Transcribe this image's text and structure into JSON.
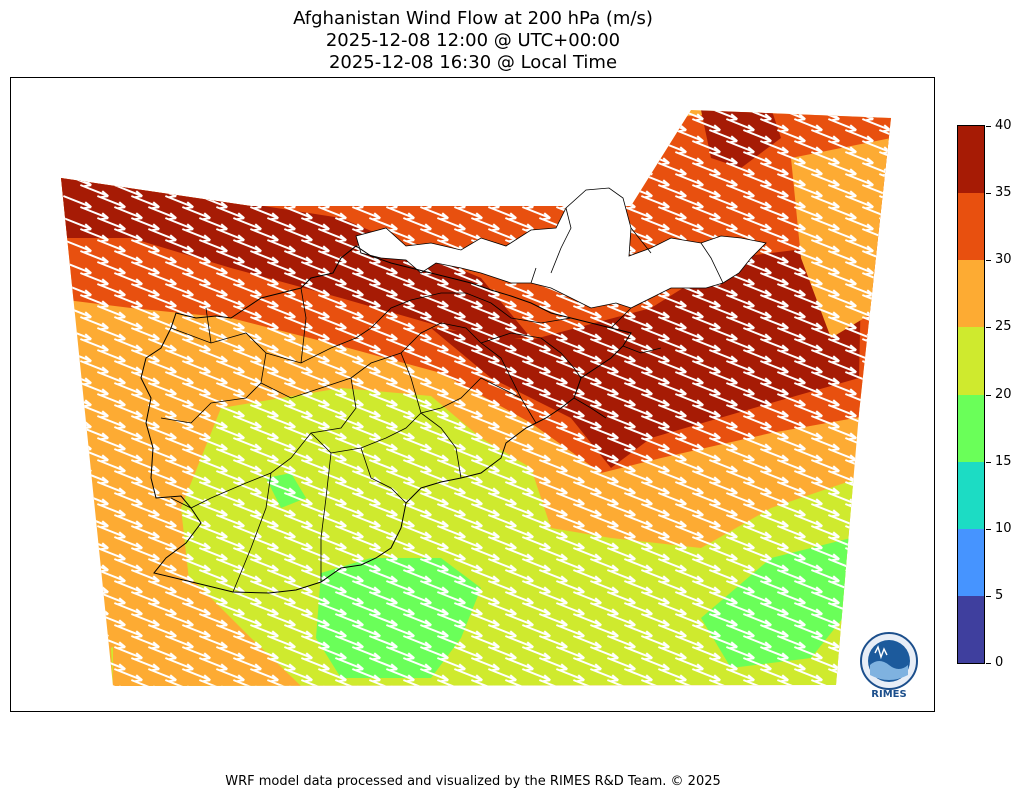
{
  "title": {
    "line1": "Afghanistan Wind Flow at 200 hPa (m/s)",
    "line2": "2025-12-08 12:00 @ UTC+00:00",
    "line3": "2025-12-08 16:30 @ Local Time"
  },
  "colorbar": {
    "levels": [
      "0",
      "5",
      "10",
      "15",
      "20",
      "25",
      "30",
      "35",
      "40"
    ],
    "colors": [
      "#3f3f9e",
      "#4694ff",
      "#1cdcc4",
      "#6aff59",
      "#cfea2e",
      "#fdab33",
      "#e8500f",
      "#a61b05"
    ]
  },
  "wind": {
    "direction": "west-northwest to east-southeast",
    "max_speed_band": "35-40",
    "strong_color": "#a61b05"
  },
  "logo": {
    "text": "RIMES"
  },
  "footer": "WRF model data processed and visualized by the RIMES R&D Team. © 2025"
}
